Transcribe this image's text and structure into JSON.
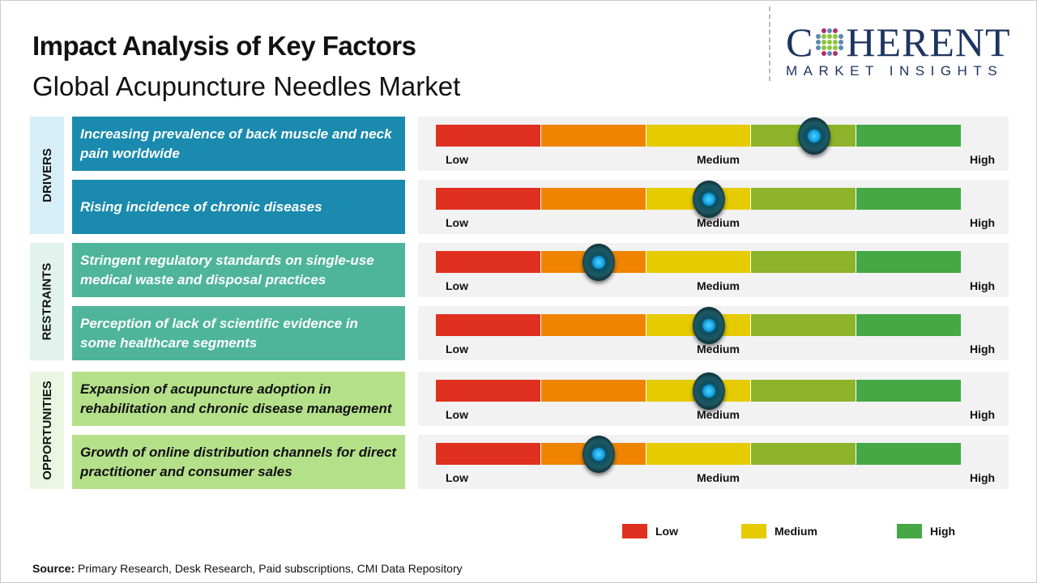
{
  "header": {
    "title": "Impact Analysis of Key Factors",
    "subtitle": "Global Acupuncture Needles Market"
  },
  "logo": {
    "main_left": "C",
    "main_right": "HERENT",
    "sub": "MARKET INSIGHTS"
  },
  "chart_data": {
    "type": "gauge",
    "scale_labels": [
      "Low",
      "Medium",
      "High"
    ],
    "segment_colors": [
      "#e03020",
      "#ee8400",
      "#e5cb00",
      "#8db32a",
      "#45a844"
    ],
    "categories": [
      {
        "name": "DRIVERS",
        "label_bg": "#d6eef8",
        "card_bg": "#1a8aae",
        "text_color": "#ffffff"
      },
      {
        "name": "RESTRAINTS",
        "label_bg": "#e2f2ed",
        "card_bg": "#4fb59a",
        "text_color": "#ffffff"
      },
      {
        "name": "OPPORTUNITIES",
        "label_bg": "#eaf6e2",
        "card_bg": "#b5e08a",
        "text_color": "#111111"
      }
    ],
    "factors": [
      {
        "category": 0,
        "text": "Increasing prevalence of back muscle and neck pain worldwide",
        "impact": 0.72
      },
      {
        "category": 0,
        "text": "Rising incidence of chronic diseases",
        "impact": 0.52
      },
      {
        "category": 1,
        "text": "Stringent regulatory standards on single-use medical waste and disposal practices",
        "impact": 0.31
      },
      {
        "category": 1,
        "text": "Perception of lack of scientific evidence in some healthcare segments",
        "impact": 0.52
      },
      {
        "category": 2,
        "text": "Expansion of acupuncture adoption in rehabilitation and chronic disease management",
        "impact": 0.52
      },
      {
        "category": 2,
        "text": "Growth of online distribution channels for direct practitioner and consumer sales",
        "impact": 0.31
      }
    ],
    "legend": [
      {
        "label": "Low",
        "color": "#e03020"
      },
      {
        "label": "Medium",
        "color": "#e5cb00"
      },
      {
        "label": "High",
        "color": "#45a844"
      }
    ]
  },
  "footer": {
    "source_label": "Source:",
    "source_text": " Primary Research, Desk Research, Paid subscriptions, CMI Data Repository"
  }
}
